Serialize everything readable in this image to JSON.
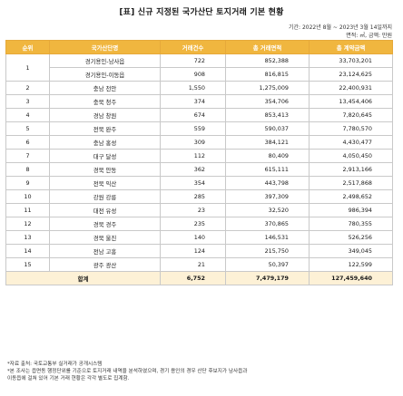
{
  "title": "[표] 신규 지정된 국가산단 토지거래 기본 현황",
  "period": "기간: 2022년 8월 ~ 2023년 3월 14일까지",
  "units": "면적: ㎡, 금액: 만원",
  "table": {
    "headers": [
      "순위",
      "국가산단명",
      "거래건수",
      "총 거래면적",
      "총 계약금액"
    ],
    "rows": [
      {
        "rank": "1",
        "region": "경기용인-남사읍",
        "count": "722",
        "area": "852,388",
        "amount": "33,703,201"
      },
      {
        "rank": "",
        "region": "경기용인-이동읍",
        "count": "908",
        "area": "816,815",
        "amount": "23,124,625"
      },
      {
        "rank": "2",
        "region": "충남 천안",
        "count": "1,550",
        "area": "1,275,009",
        "amount": "22,400,931"
      },
      {
        "rank": "3",
        "region": "충북 청주",
        "count": "374",
        "area": "354,706",
        "amount": "13,454,406"
      },
      {
        "rank": "4",
        "region": "경남 창원",
        "count": "674",
        "area": "853,413",
        "amount": "7,820,645"
      },
      {
        "rank": "5",
        "region": "전북 완주",
        "count": "559",
        "area": "590,037",
        "amount": "7,780,570"
      },
      {
        "rank": "6",
        "region": "충남 홍성",
        "count": "309",
        "area": "384,121",
        "amount": "4,430,477"
      },
      {
        "rank": "7",
        "region": "대구 달성",
        "count": "112",
        "area": "80,409",
        "amount": "4,050,450"
      },
      {
        "rank": "8",
        "region": "경북 안동",
        "count": "362",
        "area": "615,111",
        "amount": "2,913,166"
      },
      {
        "rank": "9",
        "region": "전북 익산",
        "count": "354",
        "area": "443,798",
        "amount": "2,517,868"
      },
      {
        "rank": "10",
        "region": "강원 강릉",
        "count": "285",
        "area": "397,309",
        "amount": "2,498,652"
      },
      {
        "rank": "11",
        "region": "대전 유성",
        "count": "23",
        "area": "32,520",
        "amount": "986,394"
      },
      {
        "rank": "12",
        "region": "경북 경주",
        "count": "235",
        "area": "370,865",
        "amount": "780,355"
      },
      {
        "rank": "13",
        "region": "경북 울진",
        "count": "140",
        "area": "146,531",
        "amount": "526,256"
      },
      {
        "rank": "14",
        "region": "전남 고흥",
        "count": "124",
        "area": "215,750",
        "amount": "349,045"
      },
      {
        "rank": "15",
        "region": "광주 광산",
        "count": "21",
        "area": "50,397",
        "amount": "122,599"
      }
    ],
    "total": {
      "label": "합계",
      "count": "6,752",
      "area": "7,479,179",
      "amount": "127,459,640"
    }
  },
  "notes": [
    "*자료 출처: 국토교통부 실거래가 공개시스템",
    "*본 조사는 읍면동 행정단위를 기준으로 토지거래 내역을 분석하였으며, 경기 용인의 경우 산단 후보지가 남사읍과",
    "이동읍에 걸쳐 있어 기본 거래 현황은 각각 별도로 집계함."
  ],
  "colors": {
    "header_bg": "#f0b63f",
    "header_text": "#ffffff",
    "total_bg": "#fdf1d6",
    "grid": "#c9c9c9"
  }
}
